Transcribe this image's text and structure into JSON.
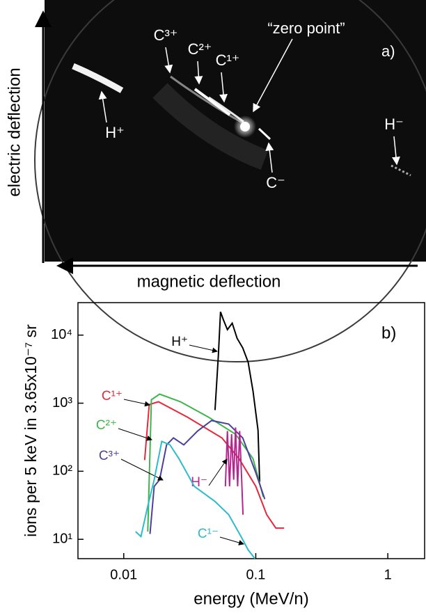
{
  "panel_a": {
    "label": "a)",
    "y_axis_label": "electric deflection",
    "x_axis_label": "magnetic deflection",
    "annotations": [
      "C³⁺",
      "C²⁺",
      "C¹⁺",
      "“zero point”",
      "H⁺",
      "H⁻",
      "C⁻"
    ]
  },
  "chart_data": {
    "type": "line",
    "panel_label": "b)",
    "x_label": "energy (MeV/n)",
    "y_label": "ions per 5 keV in 3.65x10⁻⁷ sr",
    "x_scale": "log",
    "y_scale": "log",
    "xlim": [
      0.0045,
      1.9
    ],
    "ylim": [
      5.2,
      30000
    ],
    "xticks": [
      0.01,
      0.1,
      1
    ],
    "yticks": [
      {
        "value": 10,
        "label": "10¹"
      },
      {
        "value": 100,
        "label": "10²"
      },
      {
        "value": 1000,
        "label": "10³"
      },
      {
        "value": 10000,
        "label": "10⁴"
      }
    ],
    "series": [
      {
        "name": "H⁺",
        "color": "#000000",
        "x": [
          0.0491,
          0.0521,
          0.0541,
          0.0567,
          0.061,
          0.0663,
          0.0722,
          0.0796,
          0.0876,
          0.0953,
          0.104,
          0.107
        ],
        "values": [
          790,
          5000,
          22000,
          17000,
          12000,
          15000,
          9000,
          6500,
          4000,
          1500,
          400,
          70
        ]
      },
      {
        "name": "C¹⁺",
        "color": "#e8263c",
        "x": [
          0.0144,
          0.0156,
          0.0183,
          0.0303,
          0.0553,
          0.0748,
          0.1,
          0.121,
          0.142,
          0.164
        ],
        "values": [
          146,
          955,
          1050,
          625,
          309,
          153,
          60,
          23,
          14.6,
          14.6
        ]
      },
      {
        "name": "C²⁺",
        "color": "#3cb54a",
        "x": [
          0.0152,
          0.0162,
          0.0187,
          0.0269,
          0.0435,
          0.0703,
          0.0953,
          0.114
        ],
        "values": [
          13,
          1125,
          1360,
          1050,
          630,
          350,
          153,
          42
        ]
      },
      {
        "name": "C³⁺",
        "color": "#4b3f9b",
        "x": [
          0.0158,
          0.017,
          0.0187,
          0.0211,
          0.0238,
          0.0285,
          0.0363,
          0.0463,
          0.0623,
          0.0796,
          0.1,
          0.117
        ],
        "values": [
          12,
          60,
          75,
          244,
          309,
          244,
          391,
          556,
          494,
          309,
          95,
          39
        ]
      },
      {
        "name": "H⁻",
        "color": "#b5268f",
        "x": [
          0.0589,
          0.061,
          0.0633,
          0.0656,
          0.068,
          0.0703,
          0.0729,
          0.0755,
          0.0782,
          0.08
        ],
        "values": [
          60,
          390,
          60,
          350,
          75,
          440,
          60,
          390,
          75,
          23
        ]
      },
      {
        "name": "C¹⁻",
        "color": "#2bbcc9",
        "x": [
          0.0123,
          0.0135,
          0.0151,
          0.017,
          0.0194,
          0.0224,
          0.0262,
          0.0342,
          0.0491,
          0.0623,
          0.0774,
          0.0876,
          0.0986
        ],
        "values": [
          13,
          11,
          29,
          75,
          275,
          244,
          153,
          60,
          36,
          23,
          11,
          7,
          5.2
        ]
      }
    ]
  }
}
